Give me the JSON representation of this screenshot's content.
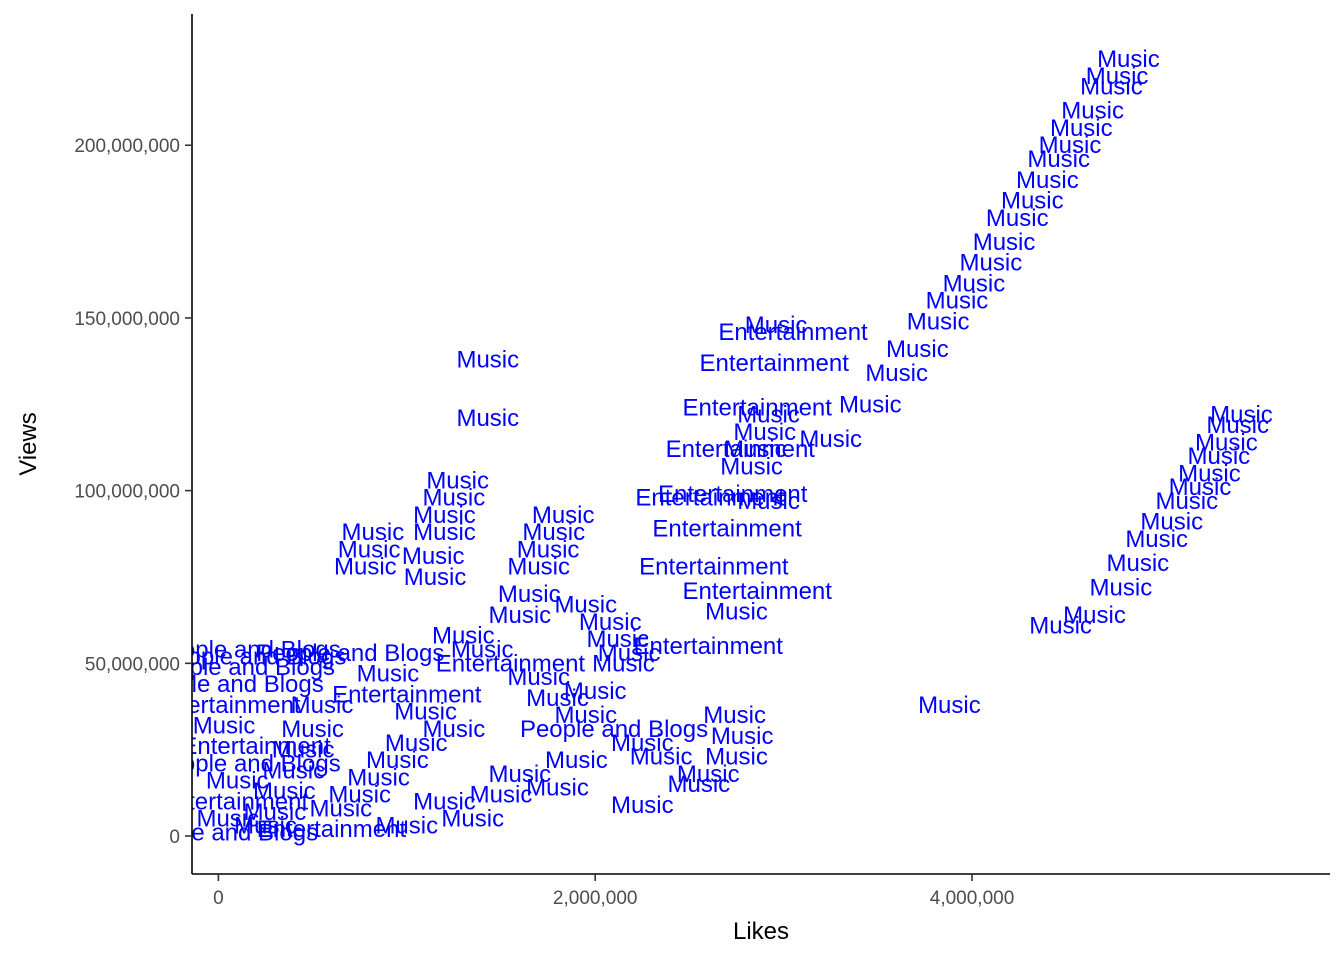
{
  "chart_data": {
    "type": "scatter",
    "xlabel": "Likes",
    "ylabel": "Views",
    "xlim": [
      -140000,
      5900000
    ],
    "ylim": [
      -11000000,
      238000000
    ],
    "x_ticks": [
      0,
      2000000,
      4000000
    ],
    "x_tick_labels": [
      "0",
      "2,000,000",
      "4,000,000"
    ],
    "y_ticks": [
      0,
      50000000,
      100000000,
      150000000,
      200000000
    ],
    "y_tick_labels": [
      "0",
      "50,000,000",
      "100,000,000",
      "150,000,000",
      "200,000,000"
    ],
    "grid": false,
    "legend": "none",
    "label_color": "#0000ff",
    "points": [
      {
        "x": 4830000,
        "y": 225000000,
        "label": "Music"
      },
      {
        "x": 4770000,
        "y": 220000000,
        "label": "Music"
      },
      {
        "x": 4740000,
        "y": 217000000,
        "label": "Music"
      },
      {
        "x": 4640000,
        "y": 210000000,
        "label": "Music"
      },
      {
        "x": 4580000,
        "y": 205000000,
        "label": "Music"
      },
      {
        "x": 4520000,
        "y": 200000000,
        "label": "Music"
      },
      {
        "x": 4460000,
        "y": 196000000,
        "label": "Music"
      },
      {
        "x": 4400000,
        "y": 190000000,
        "label": "Music"
      },
      {
        "x": 4320000,
        "y": 184000000,
        "label": "Music"
      },
      {
        "x": 4240000,
        "y": 179000000,
        "label": "Music"
      },
      {
        "x": 4170000,
        "y": 172000000,
        "label": "Music"
      },
      {
        "x": 4100000,
        "y": 166000000,
        "label": "Music"
      },
      {
        "x": 4010000,
        "y": 160000000,
        "label": "Music"
      },
      {
        "x": 3920000,
        "y": 155000000,
        "label": "Music"
      },
      {
        "x": 3820000,
        "y": 149000000,
        "label": "Music"
      },
      {
        "x": 3710000,
        "y": 141000000,
        "label": "Music"
      },
      {
        "x": 3600000,
        "y": 134000000,
        "label": "Music"
      },
      {
        "x": 3460000,
        "y": 125000000,
        "label": "Music"
      },
      {
        "x": 3250000,
        "y": 115000000,
        "label": "Music"
      },
      {
        "x": 2960000,
        "y": 148000000,
        "label": "Music"
      },
      {
        "x": 3050000,
        "y": 146000000,
        "label": "Entertainment"
      },
      {
        "x": 2950000,
        "y": 137000000,
        "label": "Entertainment"
      },
      {
        "x": 2860000,
        "y": 124000000,
        "label": "Entertainment"
      },
      {
        "x": 2770000,
        "y": 112000000,
        "label": "Entertainment"
      },
      {
        "x": 2920000,
        "y": 122000000,
        "label": "Music"
      },
      {
        "x": 2900000,
        "y": 117000000,
        "label": "Music"
      },
      {
        "x": 2850000,
        "y": 112000000,
        "label": "Music"
      },
      {
        "x": 2830000,
        "y": 107000000,
        "label": "Music"
      },
      {
        "x": 2920000,
        "y": 97000000,
        "label": "Music"
      },
      {
        "x": 2730000,
        "y": 99000000,
        "label": "Entertainment"
      },
      {
        "x": 2610000,
        "y": 98000000,
        "label": "Entertainment"
      },
      {
        "x": 2700000,
        "y": 89000000,
        "label": "Entertainment"
      },
      {
        "x": 2630000,
        "y": 78000000,
        "label": "Entertainment"
      },
      {
        "x": 2860000,
        "y": 71000000,
        "label": "Entertainment"
      },
      {
        "x": 2750000,
        "y": 65000000,
        "label": "Music"
      },
      {
        "x": 2600000,
        "y": 55000000,
        "label": "Entertainment"
      },
      {
        "x": 1430000,
        "y": 138000000,
        "label": "Music"
      },
      {
        "x": 1430000,
        "y": 121000000,
        "label": "Music"
      },
      {
        "x": 1270000,
        "y": 103000000,
        "label": "Music"
      },
      {
        "x": 1250000,
        "y": 98000000,
        "label": "Music"
      },
      {
        "x": 1200000,
        "y": 93000000,
        "label": "Music"
      },
      {
        "x": 1200000,
        "y": 88000000,
        "label": "Music"
      },
      {
        "x": 1140000,
        "y": 81000000,
        "label": "Music"
      },
      {
        "x": 1150000,
        "y": 75000000,
        "label": "Music"
      },
      {
        "x": 820000,
        "y": 88000000,
        "label": "Music"
      },
      {
        "x": 800000,
        "y": 83000000,
        "label": "Music"
      },
      {
        "x": 780000,
        "y": 78000000,
        "label": "Music"
      },
      {
        "x": 1830000,
        "y": 93000000,
        "label": "Music"
      },
      {
        "x": 1780000,
        "y": 88000000,
        "label": "Music"
      },
      {
        "x": 1750000,
        "y": 83000000,
        "label": "Music"
      },
      {
        "x": 1700000,
        "y": 78000000,
        "label": "Music"
      },
      {
        "x": 1650000,
        "y": 70000000,
        "label": "Music"
      },
      {
        "x": 1600000,
        "y": 64000000,
        "label": "Music"
      },
      {
        "x": 1950000,
        "y": 67000000,
        "label": "Music"
      },
      {
        "x": 2080000,
        "y": 62000000,
        "label": "Music"
      },
      {
        "x": 2120000,
        "y": 57000000,
        "label": "Music"
      },
      {
        "x": 2180000,
        "y": 53000000,
        "label": "Music"
      },
      {
        "x": 2150000,
        "y": 50000000,
        "label": "Music"
      },
      {
        "x": 2000000,
        "y": 42000000,
        "label": "Music"
      },
      {
        "x": 5430000,
        "y": 122000000,
        "label": "Music"
      },
      {
        "x": 5410000,
        "y": 119000000,
        "label": "Music"
      },
      {
        "x": 5350000,
        "y": 114000000,
        "label": "Music"
      },
      {
        "x": 5310000,
        "y": 110000000,
        "label": "Music"
      },
      {
        "x": 5260000,
        "y": 105000000,
        "label": "Music"
      },
      {
        "x": 5210000,
        "y": 101000000,
        "label": "Music"
      },
      {
        "x": 5140000,
        "y": 97000000,
        "label": "Music"
      },
      {
        "x": 5060000,
        "y": 91000000,
        "label": "Music"
      },
      {
        "x": 4980000,
        "y": 86000000,
        "label": "Music"
      },
      {
        "x": 4880000,
        "y": 79000000,
        "label": "Music"
      },
      {
        "x": 4790000,
        "y": 72000000,
        "label": "Music"
      },
      {
        "x": 4650000,
        "y": 64000000,
        "label": "Music"
      },
      {
        "x": 4470000,
        "y": 61000000,
        "label": "Music"
      },
      {
        "x": 3880000,
        "y": 38000000,
        "label": "Music"
      },
      {
        "x": 2740000,
        "y": 35000000,
        "label": "Music"
      },
      {
        "x": 2780000,
        "y": 29000000,
        "label": "Music"
      },
      {
        "x": 2750000,
        "y": 23000000,
        "label": "Music"
      },
      {
        "x": 2600000,
        "y": 18000000,
        "label": "Music"
      },
      {
        "x": 2550000,
        "y": 15000000,
        "label": "Music"
      },
      {
        "x": 2250000,
        "y": 9000000,
        "label": "Music"
      },
      {
        "x": 700000,
        "y": 53000000,
        "label": "People and Blogs"
      },
      {
        "x": 150000,
        "y": 54000000,
        "label": "People and Blogs"
      },
      {
        "x": 180000,
        "y": 52000000,
        "label": "People and Blogs"
      },
      {
        "x": 120000,
        "y": 49000000,
        "label": "People and Blogs"
      },
      {
        "x": 60000,
        "y": 44000000,
        "label": "People and Blogs"
      },
      {
        "x": 40000,
        "y": 38000000,
        "label": "Entertainment"
      },
      {
        "x": 30000,
        "y": 32000000,
        "label": "Music"
      },
      {
        "x": 1300000,
        "y": 58000000,
        "label": "Music"
      },
      {
        "x": 1400000,
        "y": 54000000,
        "label": "Music"
      },
      {
        "x": 1550000,
        "y": 50000000,
        "label": "Entertainment"
      },
      {
        "x": 1700000,
        "y": 46000000,
        "label": "Music"
      },
      {
        "x": 1800000,
        "y": 40000000,
        "label": "Music"
      },
      {
        "x": 1950000,
        "y": 35000000,
        "label": "Music"
      },
      {
        "x": 2100000,
        "y": 31000000,
        "label": "People and Blogs"
      },
      {
        "x": 2250000,
        "y": 27000000,
        "label": "Music"
      },
      {
        "x": 2350000,
        "y": 23000000,
        "label": "Music"
      },
      {
        "x": 1900000,
        "y": 22000000,
        "label": "Music"
      },
      {
        "x": 1600000,
        "y": 18000000,
        "label": "Music"
      },
      {
        "x": 1800000,
        "y": 14000000,
        "label": "Music"
      },
      {
        "x": 1500000,
        "y": 12000000,
        "label": "Music"
      },
      {
        "x": 1200000,
        "y": 10000000,
        "label": "Music"
      },
      {
        "x": 900000,
        "y": 47000000,
        "label": "Music"
      },
      {
        "x": 1000000,
        "y": 41000000,
        "label": "Entertainment"
      },
      {
        "x": 1100000,
        "y": 36000000,
        "label": "Music"
      },
      {
        "x": 1250000,
        "y": 31000000,
        "label": "Music"
      },
      {
        "x": 1050000,
        "y": 27000000,
        "label": "Music"
      },
      {
        "x": 950000,
        "y": 22000000,
        "label": "Music"
      },
      {
        "x": 850000,
        "y": 17000000,
        "label": "Music"
      },
      {
        "x": 750000,
        "y": 12000000,
        "label": "Music"
      },
      {
        "x": 650000,
        "y": 8000000,
        "label": "Music"
      },
      {
        "x": 550000,
        "y": 38000000,
        "label": "Music"
      },
      {
        "x": 500000,
        "y": 31000000,
        "label": "Music"
      },
      {
        "x": 450000,
        "y": 25000000,
        "label": "Music"
      },
      {
        "x": 400000,
        "y": 19000000,
        "label": "Music"
      },
      {
        "x": 350000,
        "y": 13000000,
        "label": "Music"
      },
      {
        "x": 300000,
        "y": 7000000,
        "label": "Music"
      },
      {
        "x": 250000,
        "y": 3000000,
        "label": "Music"
      },
      {
        "x": 200000,
        "y": 26000000,
        "label": "Entertainment"
      },
      {
        "x": 150000,
        "y": 21000000,
        "label": "People and Blogs"
      },
      {
        "x": 100000,
        "y": 16000000,
        "label": "Music"
      },
      {
        "x": 80000,
        "y": 10000000,
        "label": "Entertainment"
      },
      {
        "x": 50000,
        "y": 5000000,
        "label": "Music"
      },
      {
        "x": 30000,
        "y": 1000000,
        "label": "People and Blogs"
      },
      {
        "x": 600000,
        "y": 2000000,
        "label": "Entertainment"
      },
      {
        "x": 1000000,
        "y": 3000000,
        "label": "Music"
      },
      {
        "x": 1350000,
        "y": 5000000,
        "label": "Music"
      }
    ]
  }
}
